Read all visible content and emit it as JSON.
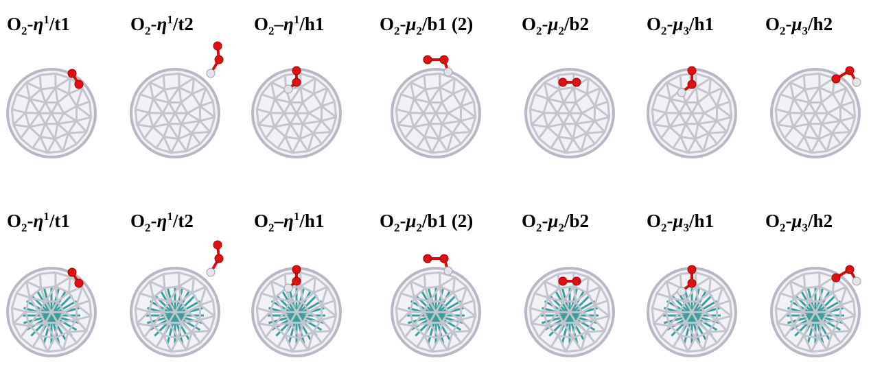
{
  "rows": [
    {
      "labels": [
        {
          "atom": "O",
          "count": "2",
          "link": "-",
          "symbol": "η",
          "superscript": "1",
          "site": "/t1"
        },
        {
          "atom": "O",
          "count": "2",
          "link": "-",
          "symbol": "η",
          "superscript": "1",
          "site": "/t2"
        },
        {
          "atom": "O",
          "count": "2",
          "link": "–",
          "symbol": "η",
          "superscript": "1",
          "site": "/h1"
        },
        {
          "atom": "O",
          "count": "2",
          "link": "-",
          "symbol": "μ",
          "subscript": "2",
          "site": "/b1 (2)"
        },
        {
          "atom": "O",
          "count": "2",
          "link": "-",
          "symbol": "μ",
          "subscript": "2",
          "site": "/b2"
        },
        {
          "atom": "O",
          "count": "2",
          "link": "-",
          "symbol": "μ",
          "subscript": "3",
          "site": "/h1"
        },
        {
          "atom": "O",
          "count": "2",
          "link": "-",
          "symbol": "μ",
          "subscript": "3",
          "site": "/h2"
        }
      ]
    },
    {
      "labels": [
        {
          "atom": "O",
          "count": "2",
          "link": "-",
          "symbol": "η",
          "superscript": "1",
          "site": "/t1"
        },
        {
          "atom": "O",
          "count": "2",
          "link": "-",
          "symbol": "η",
          "superscript": "1",
          "site": "/t2"
        },
        {
          "atom": "O",
          "count": "2",
          "link": "–",
          "symbol": "η",
          "superscript": "1",
          "site": "/h1"
        },
        {
          "atom": "O",
          "count": "2",
          "link": "-",
          "symbol": "μ",
          "subscript": "2",
          "site": "/b1 (2)"
        },
        {
          "atom": "O",
          "count": "2",
          "link": "-",
          "symbol": "μ",
          "subscript": "2",
          "site": "/b2"
        },
        {
          "atom": "O",
          "count": "2",
          "link": "-",
          "symbol": "μ",
          "subscript": "3",
          "site": "/h1"
        },
        {
          "atom": "O",
          "count": "2",
          "link": "-",
          "symbol": "μ",
          "subscript": "3",
          "site": "/h2"
        }
      ]
    }
  ]
}
